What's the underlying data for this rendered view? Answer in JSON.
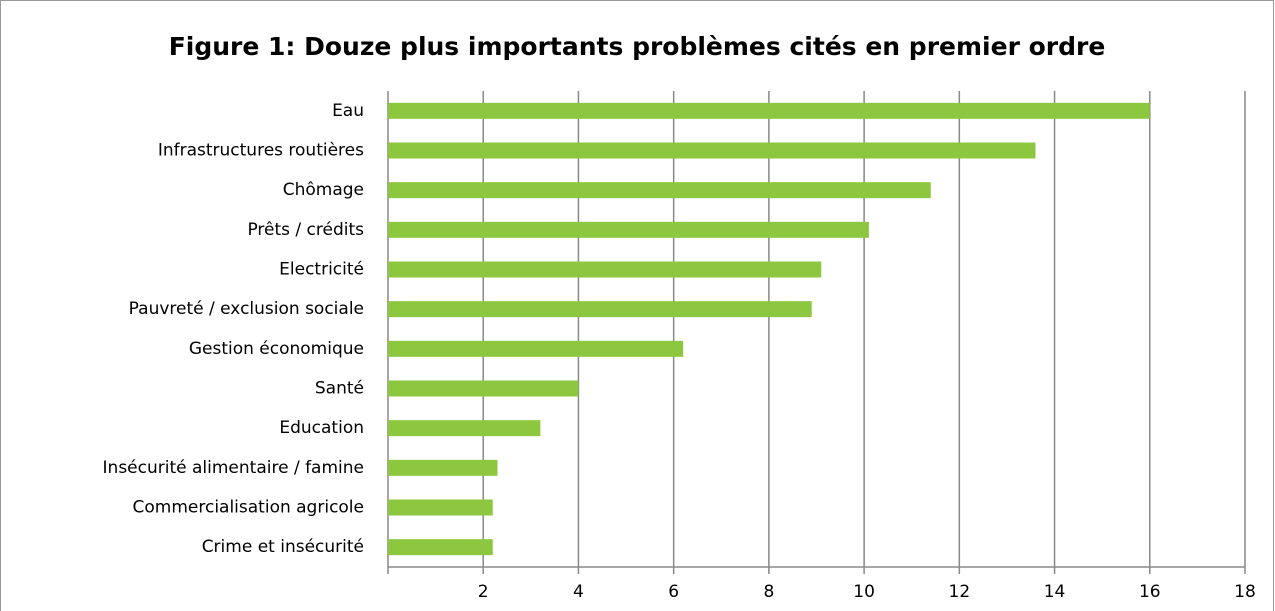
{
  "chart_data": {
    "type": "bar",
    "orientation": "horizontal",
    "title": "Figure 1: Douze plus importants problèmes cités en premier ordre",
    "categories": [
      "Eau",
      "Infrastructures routières",
      "Chômage",
      "Prêts / crédits",
      "Electricité",
      "Pauvreté / exclusion sociale",
      "Gestion économique",
      "Santé",
      "Education",
      "Insécurité alimentaire / famine",
      "Commercialisation agricole",
      "Crime et insécurité"
    ],
    "values": [
      16.0,
      13.6,
      11.4,
      10.1,
      9.1,
      8.9,
      6.2,
      4.0,
      3.2,
      2.3,
      2.2,
      2.2
    ],
    "color": "#8dc63f",
    "xlim": [
      0,
      18
    ],
    "xticks": [
      2,
      4,
      6,
      8,
      10,
      12,
      14,
      16,
      18
    ],
    "grid": true
  }
}
